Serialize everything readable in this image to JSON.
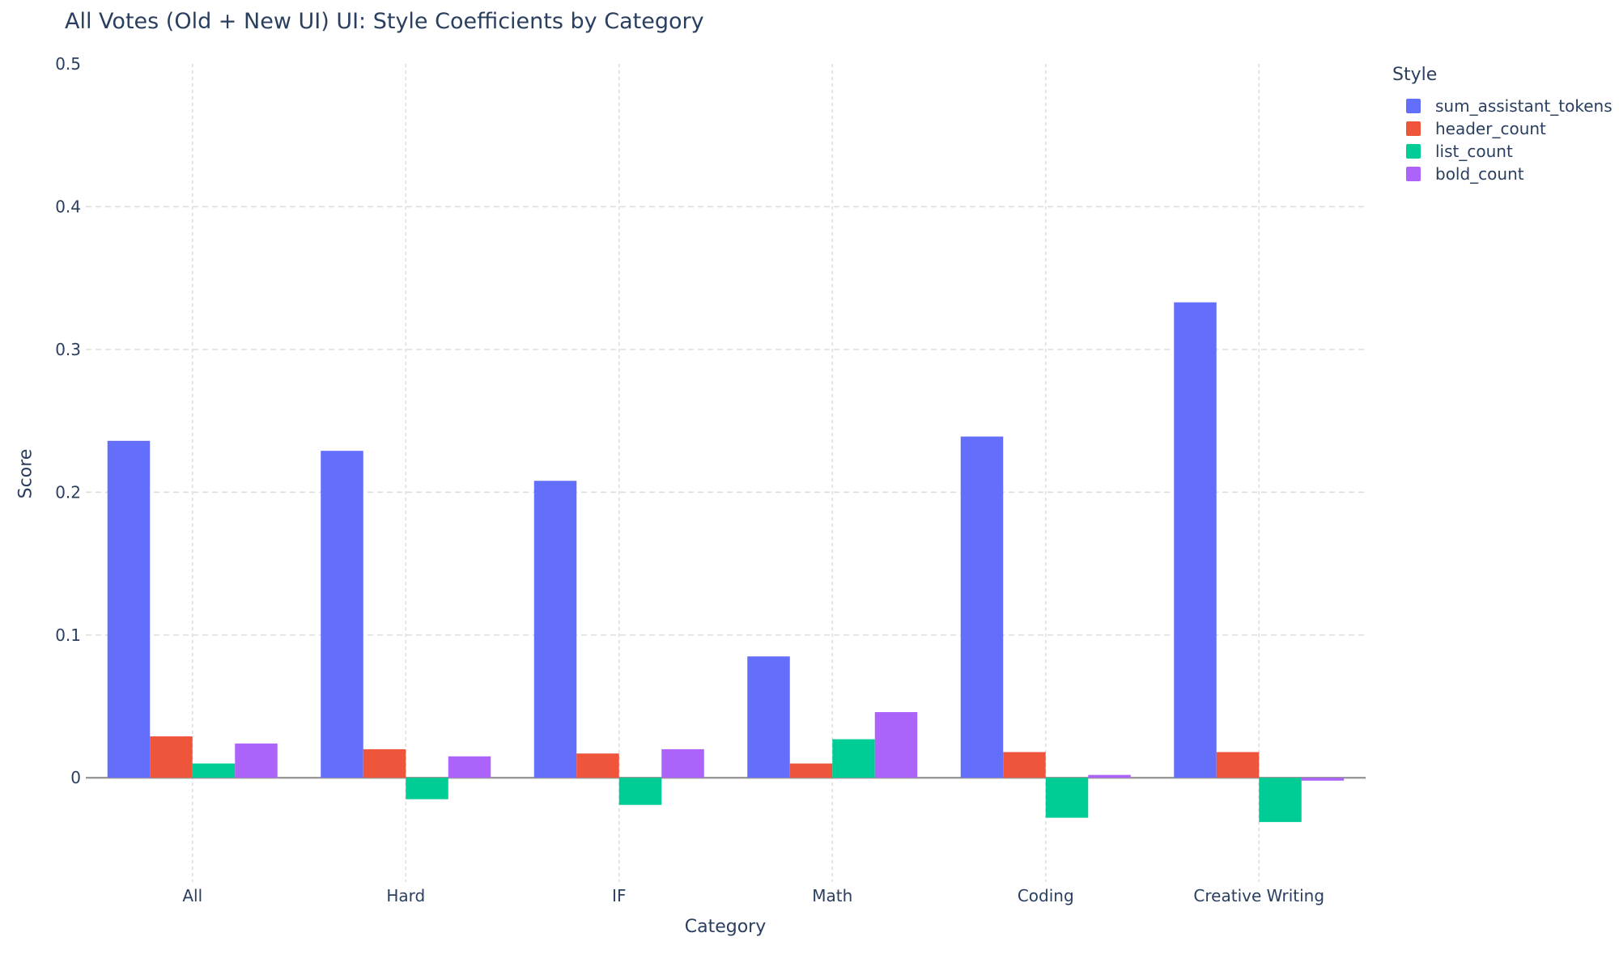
{
  "page": {
    "background_color": "#ffffff",
    "text_color": "#2a3f5f",
    "gridline_color": "#dedede",
    "zero_line_color": "#999999"
  },
  "chart_data": {
    "type": "bar",
    "title": "All Votes (Old + New UI) UI: Style Coefficients by Category",
    "xlabel": "Category",
    "ylabel": "Score",
    "legend_title": "Style",
    "legend_position": "right",
    "grid": true,
    "categories": [
      "All",
      "Hard",
      "IF",
      "Math",
      "Coding",
      "Creative Writing"
    ],
    "series": [
      {
        "name": "sum_assistant_tokens",
        "color": "#636EFA",
        "values": [
          0.236,
          0.229,
          0.208,
          0.085,
          0.239,
          0.333
        ]
      },
      {
        "name": "header_count",
        "color": "#EF553B",
        "values": [
          0.029,
          0.02,
          0.017,
          0.01,
          0.018,
          0.018
        ]
      },
      {
        "name": "list_count",
        "color": "#00CC96",
        "values": [
          0.01,
          -0.015,
          -0.019,
          0.027,
          -0.028,
          -0.031
        ]
      },
      {
        "name": "bold_count",
        "color": "#AB63FA",
        "values": [
          0.024,
          0.015,
          0.02,
          0.046,
          0.002,
          -0.002
        ]
      }
    ],
    "yticks": [
      0,
      0.1,
      0.2,
      0.3,
      0.4,
      0.5
    ],
    "ytick_labels": [
      "0",
      "0.1",
      "0.2",
      "0.3",
      "0.4",
      "0.5"
    ],
    "ylim": [
      -0.073,
      0.5
    ]
  }
}
